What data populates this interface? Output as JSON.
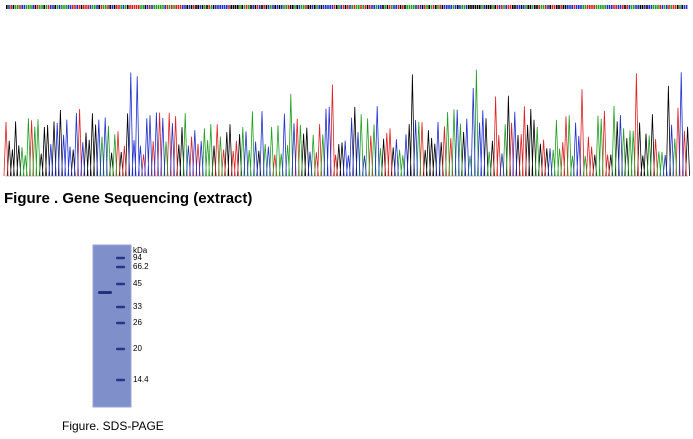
{
  "figures": [
    {
      "caption": "Figure . Gene Sequencing (extract)"
    },
    {
      "caption": "Figure. SDS-PAGE",
      "unit": "kDa",
      "marker_labels": [
        "94",
        "66.2",
        "45",
        "33",
        "26",
        "20",
        "14.4"
      ]
    }
  ]
}
